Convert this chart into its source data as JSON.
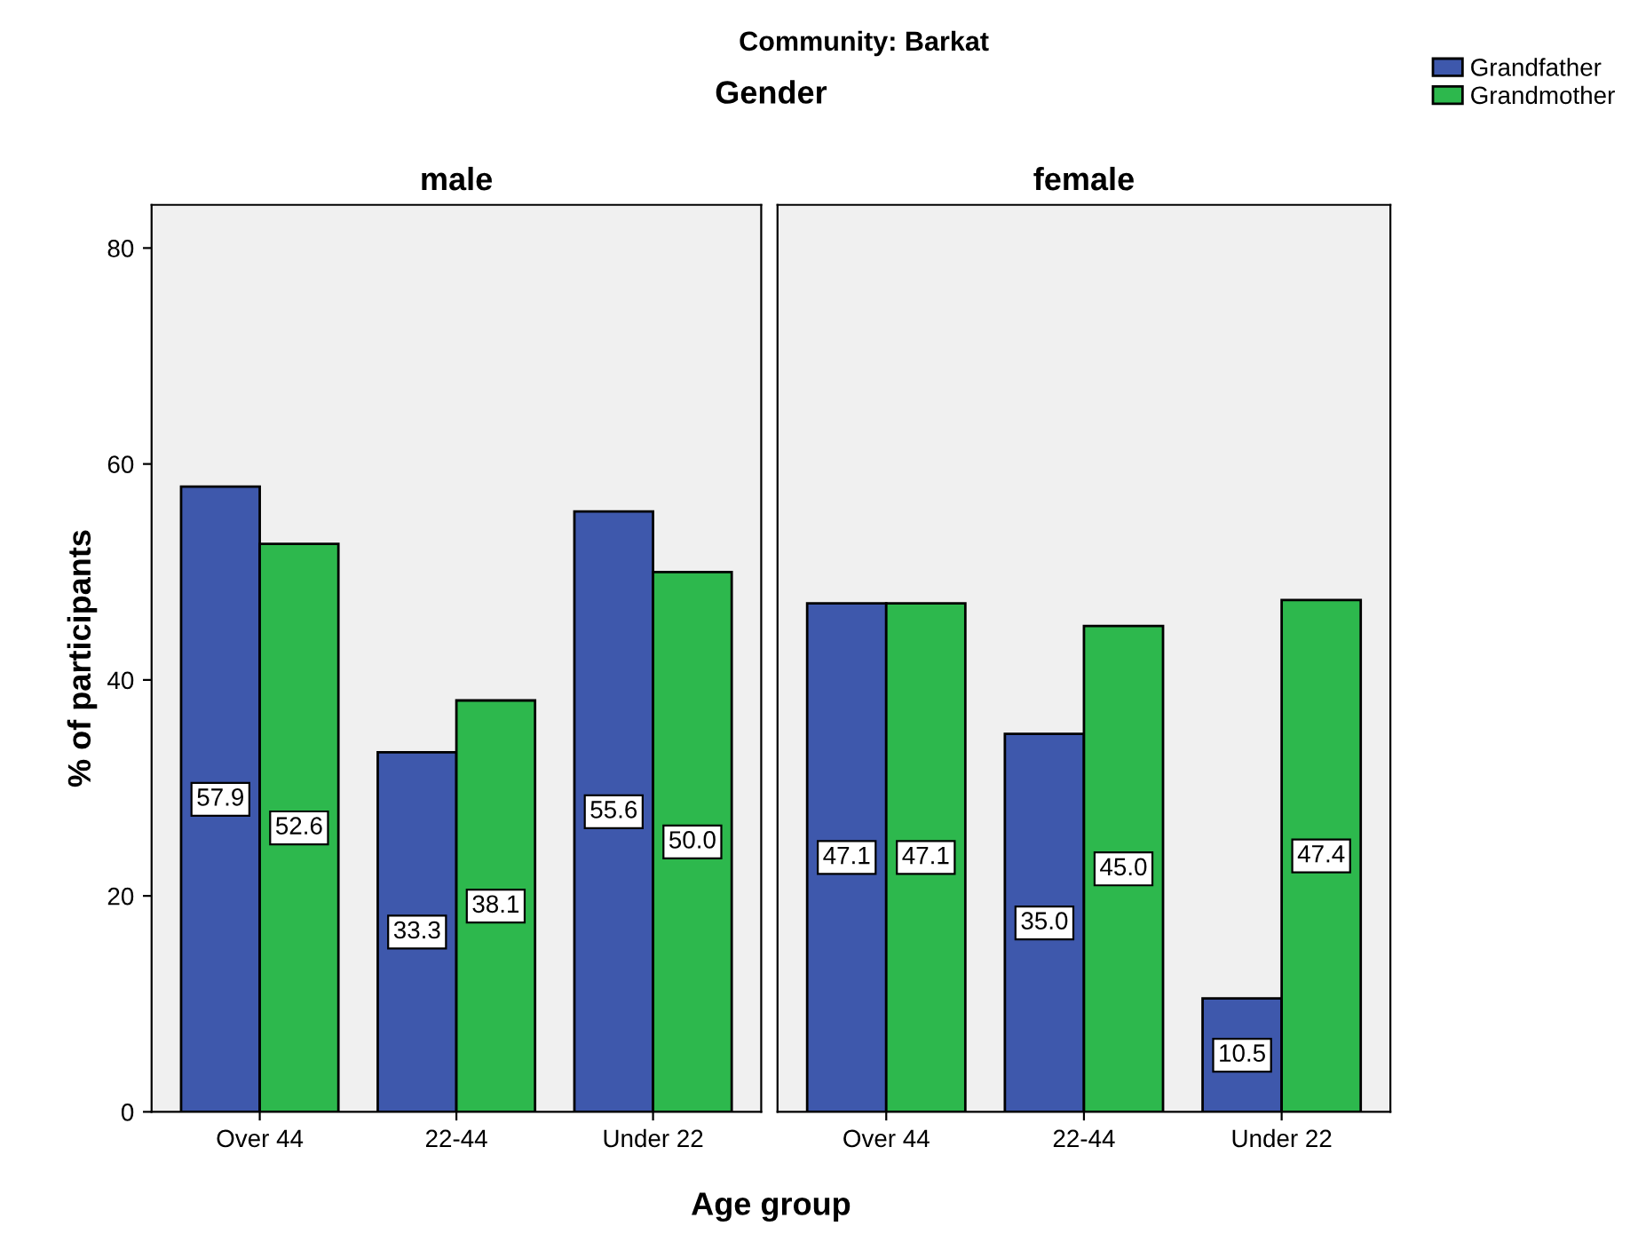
{
  "chart_data": [
    {
      "type": "bar",
      "title": "male",
      "annotations": [
        "Community: Barkat",
        "Gender"
      ],
      "xlabel": "Age group",
      "categories": [
        "Over 44",
        "22-44",
        "Under 22"
      ],
      "series": [
        {
          "name": "Grandfather",
          "color": "#3e58ac",
          "values": [
            57.9,
            33.3,
            55.6
          ],
          "value_labels": [
            "57.9",
            "33.3",
            "55.6"
          ]
        },
        {
          "name": "Grandmother",
          "color": "#2db84d",
          "values": [
            52.6,
            38.1,
            50.0
          ],
          "value_labels": [
            "52.6",
            "38.1",
            "50.0"
          ]
        }
      ],
      "ylim": [
        0,
        84
      ],
      "yticks": [
        0,
        20,
        40,
        60,
        80
      ],
      "ylabel": "% of participants",
      "grid": false,
      "legend": "top right"
    },
    {
      "type": "bar",
      "title": "female",
      "categories": [
        "Over 44",
        "22-44",
        "Under 22"
      ],
      "series": [
        {
          "color": "#3e58ac",
          "values": [
            47.1,
            35.0,
            10.5
          ],
          "value_labels": [
            "47.1",
            "35.0",
            "10.5"
          ]
        },
        {
          "color": "#2db84d",
          "values": [
            47.1,
            45.0,
            47.4
          ],
          "value_labels": [
            "47.1",
            "45.0",
            "47.4"
          ]
        }
      ],
      "ylim": [
        0,
        84
      ],
      "yticks": [
        0,
        20,
        40,
        60,
        80
      ],
      "tick_labels": "x",
      "grid": false
    }
  ]
}
